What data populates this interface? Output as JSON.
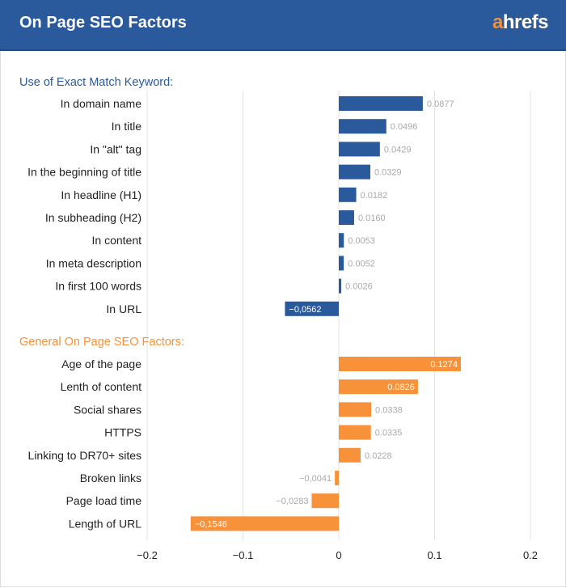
{
  "header": {
    "title": "On Page SEO Factors",
    "logo": "ahrefs"
  },
  "chart_data": {
    "type": "bar",
    "orientation": "horizontal",
    "xlim": [
      -0.2,
      0.2
    ],
    "x_ticks": [
      "-0.2",
      "-0.1",
      "0",
      "0.1",
      "0.2"
    ],
    "grid": true,
    "groups": [
      {
        "name": "Use of Exact Match Keyword:",
        "color": "#2a5a9c",
        "categories": [
          "In domain name",
          "In title",
          "In \"alt\" tag",
          "In the beginning of title",
          "In headline (H1)",
          "In subheading (H2)",
          "In content",
          "In meta description",
          "In first 100 words",
          "In URL"
        ],
        "values": [
          0.0877,
          0.0496,
          0.0429,
          0.0329,
          0.0182,
          0.016,
          0.0053,
          0.0052,
          0.0026,
          -0.0562
        ],
        "labels": [
          "0.0877",
          "0.0496",
          "0.0429",
          "0.0329",
          "0.0182",
          "0.0160",
          "0.0053",
          "0.0052",
          "0.0026",
          "−0,0562"
        ]
      },
      {
        "name": "General On Page SEO Factors:",
        "color": "#f7913a",
        "categories": [
          "Age of the page",
          "Lenth of content",
          "Social shares",
          "HTTPS",
          "Linking to DR70+ sites",
          "Broken links",
          "Page load time",
          "Length of URL"
        ],
        "values": [
          0.1274,
          0.0826,
          0.0338,
          0.0335,
          0.0228,
          -0.0041,
          -0.0283,
          -0.1546
        ],
        "labels": [
          "0.1274",
          "0.0826",
          "0.0338",
          "0.0335",
          "0.0228",
          "−0,0041",
          "−0,0283",
          "−0,1546"
        ]
      }
    ]
  }
}
